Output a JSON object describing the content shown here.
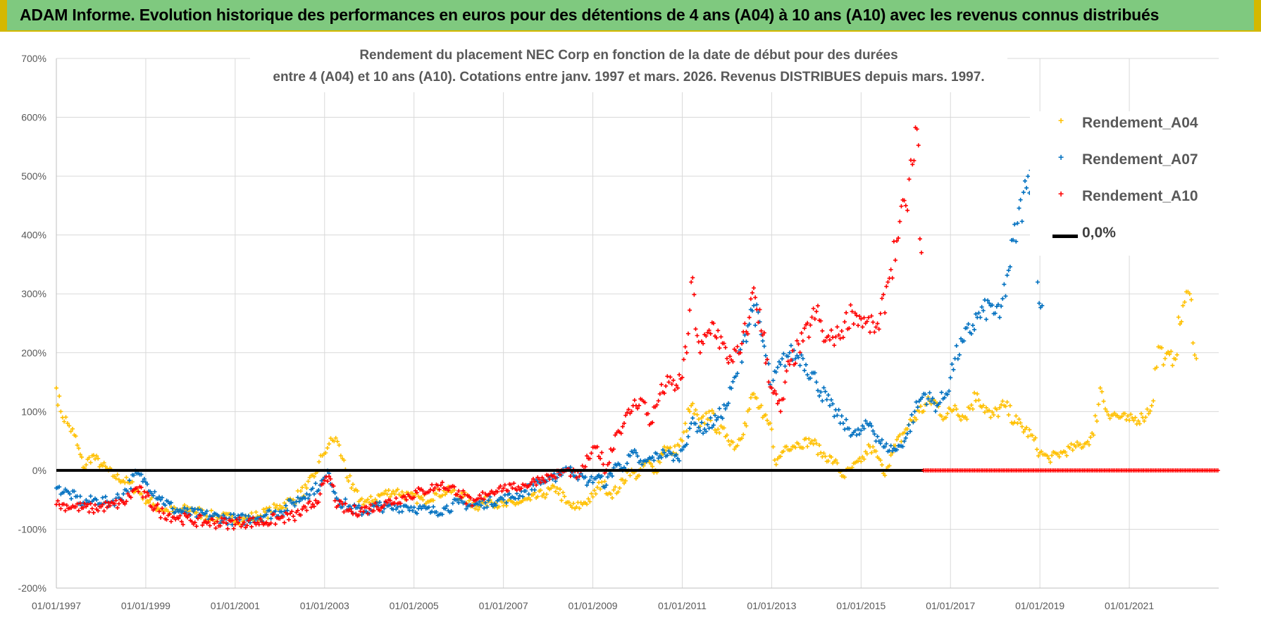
{
  "banner": {
    "text": "ADAM Informe. Evolution historique des performances en euros pour des détentions de 4 ans (A04) à 10 ans (A10) avec les revenus connus distribués",
    "color": "#7fc97f"
  },
  "chart_data": {
    "type": "scatter",
    "title_line1": "Rendement du placement NEC Corp en fonction de la date de début pour des durées",
    "title_line2": "entre 4 (A04) et 10 ans (A10). Cotations entre janv. 1997 et mars. 2026. Revenus DISTRIBUES depuis mars. 1997.",
    "xlabel": "",
    "ylabel": "",
    "x_range": [
      1997.0,
      2023.0
    ],
    "ylim": [
      -200,
      700
    ],
    "yticks": [
      -200,
      -100,
      0,
      100,
      200,
      300,
      400,
      500,
      600,
      700
    ],
    "ytick_labels": [
      "-200%",
      "-100%",
      "0%",
      "100%",
      "200%",
      "300%",
      "400%",
      "500%",
      "600%",
      "700%"
    ],
    "xticks": [
      1997,
      1999,
      2001,
      2003,
      2005,
      2007,
      2009,
      2011,
      2013,
      2015,
      2017,
      2019,
      2021
    ],
    "xtick_labels": [
      "01/01/1997",
      "01/01/1999",
      "01/01/2001",
      "01/01/2003",
      "01/01/2005",
      "01/01/2007",
      "01/01/2009",
      "01/01/2011",
      "01/01/2013",
      "01/01/2015",
      "01/01/2017",
      "01/01/2019",
      "01/01/2021"
    ],
    "grid": true,
    "legend_position": "top-right",
    "series": [
      {
        "name": "Rendement_A04",
        "color": "#ffc000",
        "marker": "+",
        "points": [
          [
            1997.0,
            140
          ],
          [
            1997.1,
            100
          ],
          [
            1997.25,
            80
          ],
          [
            1997.4,
            60
          ],
          [
            1997.6,
            5
          ],
          [
            1997.8,
            25
          ],
          [
            1998.0,
            10
          ],
          [
            1998.3,
            -10
          ],
          [
            1998.6,
            -20
          ],
          [
            1998.9,
            -40
          ],
          [
            1999.2,
            -60
          ],
          [
            1999.5,
            -70
          ],
          [
            1999.8,
            -68
          ],
          [
            2000.0,
            -65
          ],
          [
            2000.3,
            -75
          ],
          [
            2000.6,
            -80
          ],
          [
            2000.9,
            -82
          ],
          [
            2001.2,
            -82
          ],
          [
            2001.5,
            -78
          ],
          [
            2001.8,
            -70
          ],
          [
            2002.0,
            -60
          ],
          [
            2002.3,
            -50
          ],
          [
            2002.6,
            -30
          ],
          [
            2002.8,
            -5
          ],
          [
            2002.95,
            25
          ],
          [
            2003.1,
            45
          ],
          [
            2003.25,
            55
          ],
          [
            2003.4,
            20
          ],
          [
            2003.6,
            -30
          ],
          [
            2003.8,
            -50
          ],
          [
            2004.0,
            -55
          ],
          [
            2004.3,
            -40
          ],
          [
            2004.6,
            -35
          ],
          [
            2004.9,
            -45
          ],
          [
            2005.2,
            -50
          ],
          [
            2005.5,
            -40
          ],
          [
            2005.8,
            -35
          ],
          [
            2006.1,
            -45
          ],
          [
            2006.4,
            -60
          ],
          [
            2006.7,
            -50
          ],
          [
            2007.0,
            -60
          ],
          [
            2007.3,
            -55
          ],
          [
            2007.6,
            -50
          ],
          [
            2007.9,
            -40
          ],
          [
            2008.2,
            -30
          ],
          [
            2008.4,
            -55
          ],
          [
            2008.6,
            -65
          ],
          [
            2008.8,
            -55
          ],
          [
            2009.0,
            -45
          ],
          [
            2009.2,
            -20
          ],
          [
            2009.4,
            -40
          ],
          [
            2009.6,
            -30
          ],
          [
            2009.8,
            0
          ],
          [
            2010.0,
            -10
          ],
          [
            2010.2,
            15
          ],
          [
            2010.4,
            0
          ],
          [
            2010.6,
            40
          ],
          [
            2010.8,
            30
          ],
          [
            2011.0,
            50
          ],
          [
            2011.2,
            110
          ],
          [
            2011.4,
            75
          ],
          [
            2011.6,
            100
          ],
          [
            2011.8,
            70
          ],
          [
            2012.0,
            60
          ],
          [
            2012.2,
            40
          ],
          [
            2012.4,
            80
          ],
          [
            2012.6,
            130
          ],
          [
            2012.8,
            90
          ],
          [
            2013.0,
            70
          ],
          [
            2013.1,
            10
          ],
          [
            2013.3,
            40
          ],
          [
            2013.6,
            45
          ],
          [
            2013.9,
            50
          ],
          [
            2014.1,
            30
          ],
          [
            2014.4,
            15
          ],
          [
            2014.6,
            -10
          ],
          [
            2014.8,
            5
          ],
          [
            2015.0,
            15
          ],
          [
            2015.2,
            40
          ],
          [
            2015.4,
            20
          ],
          [
            2015.5,
            -5
          ],
          [
            2015.7,
            30
          ],
          [
            2016.0,
            70
          ],
          [
            2016.3,
            100
          ],
          [
            2016.6,
            120
          ],
          [
            2016.9,
            90
          ],
          [
            2017.1,
            110
          ],
          [
            2017.3,
            90
          ],
          [
            2017.6,
            130
          ],
          [
            2017.9,
            90
          ],
          [
            2018.2,
            110
          ],
          [
            2018.5,
            80
          ],
          [
            2018.8,
            60
          ],
          [
            2019.0,
            30
          ],
          [
            2019.2,
            20
          ],
          [
            2019.5,
            30
          ],
          [
            2019.8,
            40
          ],
          [
            2020.0,
            45
          ],
          [
            2020.2,
            60
          ],
          [
            2020.35,
            140
          ],
          [
            2020.5,
            100
          ],
          [
            2020.8,
            90
          ],
          [
            2021.0,
            85
          ],
          [
            2021.3,
            90
          ],
          [
            2021.5,
            110
          ],
          [
            2021.65,
            210
          ],
          [
            2021.8,
            190
          ],
          [
            2022.0,
            190
          ],
          [
            2022.2,
            280
          ],
          [
            2022.35,
            300
          ],
          [
            2022.5,
            190
          ]
        ]
      },
      {
        "name": "Rendement_A07",
        "color": "#0070c0",
        "marker": "+",
        "points": [
          [
            1997.0,
            -30
          ],
          [
            1997.3,
            -40
          ],
          [
            1997.6,
            -55
          ],
          [
            1997.9,
            -50
          ],
          [
            1998.2,
            -55
          ],
          [
            1998.5,
            -40
          ],
          [
            1998.8,
            -5
          ],
          [
            1999.0,
            -20
          ],
          [
            1999.3,
            -45
          ],
          [
            1999.6,
            -65
          ],
          [
            1999.9,
            -72
          ],
          [
            2000.2,
            -75
          ],
          [
            2000.5,
            -78
          ],
          [
            2000.8,
            -82
          ],
          [
            2001.1,
            -84
          ],
          [
            2001.4,
            -80
          ],
          [
            2001.7,
            -75
          ],
          [
            2002.0,
            -70
          ],
          [
            2002.3,
            -55
          ],
          [
            2002.6,
            -40
          ],
          [
            2002.9,
            -25
          ],
          [
            2003.1,
            -5
          ],
          [
            2003.3,
            -50
          ],
          [
            2003.6,
            -65
          ],
          [
            2003.9,
            -70
          ],
          [
            2004.2,
            -60
          ],
          [
            2004.5,
            -65
          ],
          [
            2004.8,
            -60
          ],
          [
            2005.1,
            -65
          ],
          [
            2005.4,
            -70
          ],
          [
            2005.7,
            -65
          ],
          [
            2006.0,
            -55
          ],
          [
            2006.3,
            -60
          ],
          [
            2006.6,
            -55
          ],
          [
            2006.9,
            -50
          ],
          [
            2007.2,
            -45
          ],
          [
            2007.5,
            -35
          ],
          [
            2007.8,
            -20
          ],
          [
            2008.1,
            -15
          ],
          [
            2008.4,
            5
          ],
          [
            2008.7,
            -10
          ],
          [
            2008.9,
            -20
          ],
          [
            2009.1,
            -10
          ],
          [
            2009.3,
            -25
          ],
          [
            2009.5,
            10
          ],
          [
            2009.7,
            5
          ],
          [
            2009.9,
            30
          ],
          [
            2010.1,
            10
          ],
          [
            2010.3,
            20
          ],
          [
            2010.6,
            30
          ],
          [
            2010.9,
            20
          ],
          [
            2011.0,
            35
          ],
          [
            2011.2,
            80
          ],
          [
            2011.5,
            70
          ],
          [
            2011.8,
            90
          ],
          [
            2012.0,
            110
          ],
          [
            2012.2,
            160
          ],
          [
            2012.4,
            230
          ],
          [
            2012.6,
            280
          ],
          [
            2012.8,
            220
          ],
          [
            2013.0,
            140
          ],
          [
            2013.2,
            180
          ],
          [
            2013.4,
            200
          ],
          [
            2013.7,
            190
          ],
          [
            2014.0,
            150
          ],
          [
            2014.3,
            110
          ],
          [
            2014.6,
            80
          ],
          [
            2014.9,
            60
          ],
          [
            2015.2,
            80
          ],
          [
            2015.5,
            40
          ],
          [
            2015.8,
            35
          ],
          [
            2016.0,
            55
          ],
          [
            2016.2,
            100
          ],
          [
            2016.4,
            130
          ],
          [
            2016.7,
            110
          ],
          [
            2016.9,
            130
          ],
          [
            2017.1,
            190
          ],
          [
            2017.3,
            220
          ],
          [
            2017.6,
            260
          ],
          [
            2017.9,
            280
          ],
          [
            2018.1,
            260
          ],
          [
            2018.3,
            340
          ],
          [
            2018.5,
            420
          ],
          [
            2018.7,
            480
          ],
          [
            2018.8,
            510
          ],
          [
            2018.95,
            320
          ],
          [
            2019.05,
            280
          ]
        ]
      },
      {
        "name": "Rendement_A10",
        "color": "#ff0000",
        "marker": "+",
        "points": [
          [
            1997.0,
            -58
          ],
          [
            1997.4,
            -62
          ],
          [
            1997.8,
            -65
          ],
          [
            1998.2,
            -60
          ],
          [
            1998.5,
            -55
          ],
          [
            1998.8,
            -30
          ],
          [
            1999.0,
            -45
          ],
          [
            1999.3,
            -70
          ],
          [
            1999.7,
            -80
          ],
          [
            2000.0,
            -85
          ],
          [
            2000.4,
            -88
          ],
          [
            2000.8,
            -90
          ],
          [
            2001.2,
            -88
          ],
          [
            2001.6,
            -88
          ],
          [
            2002.0,
            -82
          ],
          [
            2002.3,
            -78
          ],
          [
            2002.6,
            -68
          ],
          [
            2002.9,
            -40
          ],
          [
            2003.1,
            -10
          ],
          [
            2003.3,
            -60
          ],
          [
            2003.6,
            -70
          ],
          [
            2004.0,
            -65
          ],
          [
            2004.4,
            -55
          ],
          [
            2004.8,
            -45
          ],
          [
            2005.2,
            -35
          ],
          [
            2005.6,
            -25
          ],
          [
            2006.0,
            -35
          ],
          [
            2006.3,
            -60
          ],
          [
            2006.6,
            -40
          ],
          [
            2006.9,
            -30
          ],
          [
            2007.2,
            -30
          ],
          [
            2007.5,
            -25
          ],
          [
            2007.8,
            -15
          ],
          [
            2008.1,
            -10
          ],
          [
            2008.4,
            0
          ],
          [
            2008.7,
            -10
          ],
          [
            2008.9,
            20
          ],
          [
            2009.1,
            40
          ],
          [
            2009.3,
            0
          ],
          [
            2009.5,
            60
          ],
          [
            2009.7,
            80
          ],
          [
            2009.9,
            110
          ],
          [
            2010.1,
            120
          ],
          [
            2010.3,
            80
          ],
          [
            2010.5,
            130
          ],
          [
            2010.7,
            150
          ],
          [
            2010.9,
            140
          ],
          [
            2011.1,
            200
          ],
          [
            2011.2,
            320
          ],
          [
            2011.4,
            200
          ],
          [
            2011.7,
            250
          ],
          [
            2012.0,
            190
          ],
          [
            2012.3,
            200
          ],
          [
            2012.5,
            260
          ],
          [
            2012.6,
            310
          ],
          [
            2012.8,
            230
          ],
          [
            2013.0,
            140
          ],
          [
            2013.2,
            100
          ],
          [
            2013.4,
            180
          ],
          [
            2013.7,
            220
          ],
          [
            2014.0,
            270
          ],
          [
            2014.2,
            220
          ],
          [
            2014.5,
            230
          ],
          [
            2014.8,
            270
          ],
          [
            2015.1,
            250
          ],
          [
            2015.4,
            240
          ],
          [
            2015.6,
            320
          ],
          [
            2015.8,
            390
          ],
          [
            2016.0,
            450
          ],
          [
            2016.15,
            520
          ],
          [
            2016.25,
            580
          ],
          [
            2016.35,
            370
          ]
        ]
      },
      {
        "name": "0,0%",
        "color": "#000000",
        "marker": "line",
        "points": [
          [
            1997.0,
            0
          ],
          [
            2016.4,
            0
          ]
        ]
      }
    ]
  },
  "zero_fill_range": [
    2016.4,
    2023.0
  ]
}
